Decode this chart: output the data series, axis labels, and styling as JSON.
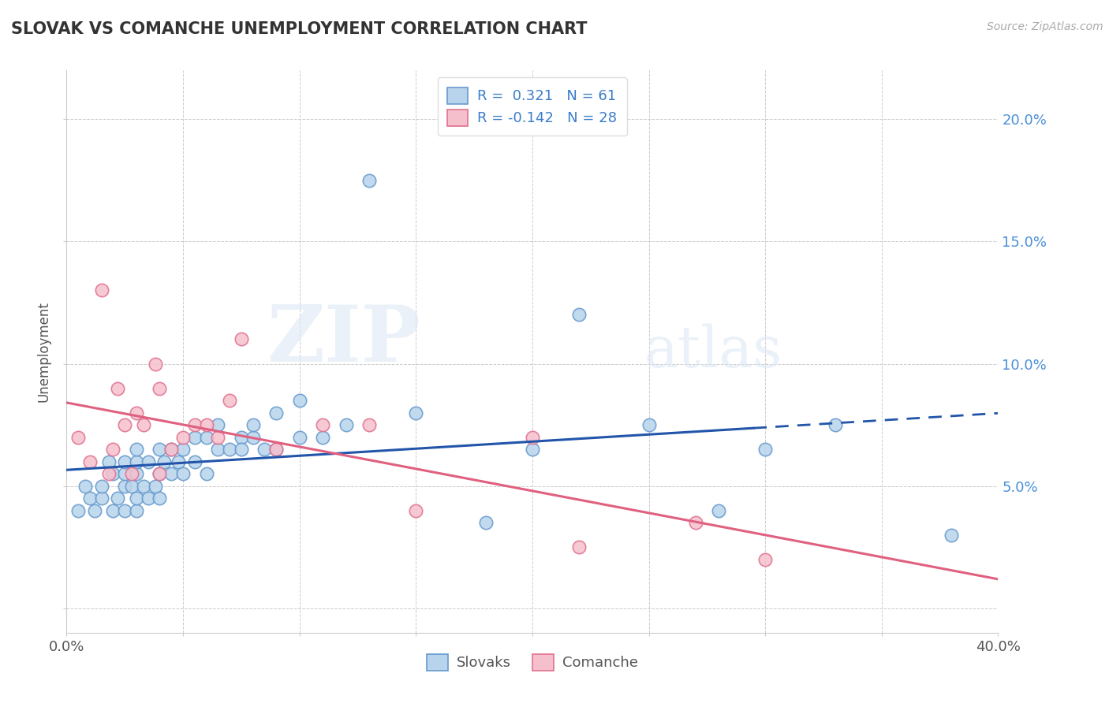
{
  "title": "SLOVAK VS COMANCHE UNEMPLOYMENT CORRELATION CHART",
  "source_text": "Source: ZipAtlas.com",
  "ylabel": "Unemployment",
  "xlim": [
    0.0,
    0.4
  ],
  "ylim": [
    -0.01,
    0.22
  ],
  "slovak_color": "#b8d4ec",
  "slovak_edge_color": "#6699cc",
  "comanche_color": "#f5c0cc",
  "comanche_edge_color": "#e07090",
  "trend_slovak_color": "#2255aa",
  "trend_comanche_color": "#e06080",
  "legend_r_slovak": "R =  0.321   N = 61",
  "legend_r_comanche": "R = -0.142   N = 28",
  "watermark_zip": "ZIP",
  "watermark_atlas": "atlas",
  "slovak_x": [
    0.005,
    0.008,
    0.01,
    0.012,
    0.015,
    0.015,
    0.018,
    0.02,
    0.02,
    0.022,
    0.025,
    0.025,
    0.025,
    0.025,
    0.028,
    0.03,
    0.03,
    0.03,
    0.03,
    0.03,
    0.033,
    0.035,
    0.035,
    0.038,
    0.04,
    0.04,
    0.04,
    0.042,
    0.045,
    0.045,
    0.048,
    0.05,
    0.05,
    0.055,
    0.055,
    0.06,
    0.06,
    0.065,
    0.065,
    0.07,
    0.075,
    0.075,
    0.08,
    0.08,
    0.085,
    0.09,
    0.09,
    0.1,
    0.1,
    0.11,
    0.12,
    0.13,
    0.15,
    0.18,
    0.2,
    0.22,
    0.25,
    0.28,
    0.3,
    0.33,
    0.38
  ],
  "slovak_y": [
    0.04,
    0.05,
    0.045,
    0.04,
    0.045,
    0.05,
    0.06,
    0.04,
    0.055,
    0.045,
    0.04,
    0.05,
    0.055,
    0.06,
    0.05,
    0.04,
    0.045,
    0.055,
    0.06,
    0.065,
    0.05,
    0.045,
    0.06,
    0.05,
    0.045,
    0.055,
    0.065,
    0.06,
    0.055,
    0.065,
    0.06,
    0.055,
    0.065,
    0.06,
    0.07,
    0.055,
    0.07,
    0.065,
    0.075,
    0.065,
    0.07,
    0.065,
    0.07,
    0.075,
    0.065,
    0.065,
    0.08,
    0.07,
    0.085,
    0.07,
    0.075,
    0.175,
    0.08,
    0.035,
    0.065,
    0.12,
    0.075,
    0.04,
    0.065,
    0.075,
    0.03
  ],
  "comanche_x": [
    0.005,
    0.01,
    0.015,
    0.018,
    0.02,
    0.022,
    0.025,
    0.028,
    0.03,
    0.033,
    0.038,
    0.04,
    0.04,
    0.045,
    0.05,
    0.055,
    0.06,
    0.065,
    0.07,
    0.075,
    0.09,
    0.11,
    0.13,
    0.15,
    0.2,
    0.22,
    0.27,
    0.3
  ],
  "comanche_y": [
    0.07,
    0.06,
    0.13,
    0.055,
    0.065,
    0.09,
    0.075,
    0.055,
    0.08,
    0.075,
    0.1,
    0.055,
    0.09,
    0.065,
    0.07,
    0.075,
    0.075,
    0.07,
    0.085,
    0.11,
    0.065,
    0.075,
    0.075,
    0.04,
    0.07,
    0.025,
    0.035,
    0.02
  ]
}
